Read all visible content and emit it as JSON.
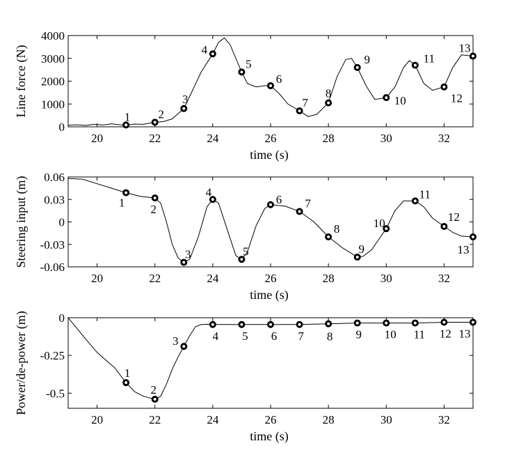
{
  "chart_data": [
    {
      "type": "line",
      "xlabel": "time (s)",
      "ylabel": "Line force (N)",
      "xlim": [
        19,
        33
      ],
      "ylim": [
        0,
        4000
      ],
      "xticks": [
        20,
        22,
        24,
        26,
        28,
        30,
        32
      ],
      "xtick_labels": [
        "20",
        "22",
        "24",
        "26",
        "28",
        "30",
        "32"
      ],
      "yticks": [
        0,
        1000,
        2000,
        3000,
        4000
      ],
      "ytick_labels": [
        "0",
        "1000",
        "2000",
        "3000",
        "4000"
      ],
      "series": [
        {
          "name": "line force",
          "x": [
            19.0,
            19.3,
            19.6,
            19.9,
            20.2,
            20.5,
            20.8,
            21.0,
            21.3,
            21.6,
            22.0,
            22.3,
            22.6,
            23.0,
            23.3,
            23.6,
            24.0,
            24.2,
            24.4,
            24.6,
            24.8,
            25.0,
            25.2,
            25.5,
            25.8,
            26.0,
            26.3,
            26.6,
            27.0,
            27.3,
            27.6,
            28.0,
            28.3,
            28.6,
            28.8,
            29.0,
            29.3,
            29.6,
            30.0,
            30.3,
            30.6,
            30.8,
            31.0,
            31.3,
            31.6,
            32.0,
            32.3,
            32.6,
            33.0
          ],
          "y": [
            70,
            90,
            60,
            110,
            80,
            130,
            90,
            80,
            120,
            110,
            200,
            230,
            350,
            800,
            1600,
            2400,
            3200,
            3700,
            3900,
            3600,
            3000,
            2400,
            1900,
            1750,
            1800,
            1800,
            1450,
            1000,
            700,
            450,
            550,
            1050,
            2200,
            2950,
            3000,
            2600,
            1800,
            1200,
            1280,
            1750,
            2600,
            2900,
            2700,
            1900,
            1600,
            1750,
            2600,
            3150,
            3100
          ]
        }
      ],
      "points": [
        {
          "label": "1",
          "x": 21,
          "y": 80
        },
        {
          "label": "2",
          "x": 22,
          "y": 200
        },
        {
          "label": "3",
          "x": 23,
          "y": 800
        },
        {
          "label": "4",
          "x": 24,
          "y": 3200
        },
        {
          "label": "5",
          "x": 25,
          "y": 2400
        },
        {
          "label": "6",
          "x": 26,
          "y": 1800
        },
        {
          "label": "7",
          "x": 27,
          "y": 700
        },
        {
          "label": "8",
          "x": 28,
          "y": 1050
        },
        {
          "label": "9",
          "x": 29,
          "y": 2600
        },
        {
          "label": "10",
          "x": 30,
          "y": 1280
        },
        {
          "label": "11",
          "x": 31,
          "y": 2700
        },
        {
          "label": "12",
          "x": 32,
          "y": 1750
        },
        {
          "label": "13",
          "x": 33,
          "y": 3100
        }
      ]
    },
    {
      "type": "line",
      "xlabel": "time (s)",
      "ylabel": "Steering input (m)",
      "xlim": [
        19,
        33
      ],
      "ylim": [
        -0.06,
        0.06
      ],
      "xticks": [
        20,
        22,
        24,
        26,
        28,
        30,
        32
      ],
      "xtick_labels": [
        "20",
        "22",
        "24",
        "26",
        "28",
        "30",
        "32"
      ],
      "yticks": [
        0.06,
        0.03,
        0,
        -0.03,
        -0.06
      ],
      "ytick_labels": [
        "0.06",
        "0.03",
        "0",
        "-0.03",
        "-0.06"
      ],
      "series": [
        {
          "name": "steering input",
          "x": [
            19.0,
            19.5,
            20.0,
            20.5,
            21.0,
            21.5,
            22.0,
            22.2,
            22.4,
            22.6,
            22.8,
            23.0,
            23.2,
            23.5,
            23.8,
            24.0,
            24.2,
            24.5,
            24.8,
            25.0,
            25.2,
            25.5,
            25.8,
            26.0,
            26.5,
            27.0,
            27.5,
            28.0,
            28.5,
            29.0,
            29.2,
            29.5,
            29.8,
            30.0,
            30.3,
            30.6,
            31.0,
            31.3,
            31.6,
            32.0,
            32.3,
            32.6,
            33.0
          ],
          "y": [
            0.058,
            0.057,
            0.051,
            0.045,
            0.039,
            0.034,
            0.032,
            0.025,
            0.0,
            -0.03,
            -0.048,
            -0.054,
            -0.05,
            -0.02,
            0.02,
            0.03,
            0.025,
            -0.01,
            -0.045,
            -0.05,
            -0.04,
            -0.005,
            0.018,
            0.023,
            0.021,
            0.014,
            0.0,
            -0.02,
            -0.035,
            -0.047,
            -0.046,
            -0.037,
            -0.02,
            -0.009,
            0.015,
            0.028,
            0.028,
            0.02,
            0.005,
            -0.006,
            -0.014,
            -0.019,
            -0.02
          ]
        }
      ],
      "points": [
        {
          "label": "1",
          "x": 21,
          "y": 0.039
        },
        {
          "label": "2",
          "x": 22,
          "y": 0.032
        },
        {
          "label": "3",
          "x": 23,
          "y": -0.054
        },
        {
          "label": "4",
          "x": 24,
          "y": 0.03
        },
        {
          "label": "5",
          "x": 25,
          "y": -0.05
        },
        {
          "label": "6",
          "x": 26,
          "y": 0.023
        },
        {
          "label": "7",
          "x": 27,
          "y": 0.014
        },
        {
          "label": "8",
          "x": 28,
          "y": -0.02
        },
        {
          "label": "9",
          "x": 29,
          "y": -0.047
        },
        {
          "label": "10",
          "x": 30,
          "y": -0.009
        },
        {
          "label": "11",
          "x": 31,
          "y": 0.028
        },
        {
          "label": "12",
          "x": 32,
          "y": -0.006
        },
        {
          "label": "13",
          "x": 33,
          "y": -0.02
        }
      ]
    },
    {
      "type": "line",
      "xlabel": "time (s)",
      "ylabel": "Power/de-power (m)",
      "xlim": [
        19,
        33
      ],
      "ylim": [
        -0.6,
        0
      ],
      "xticks": [
        20,
        22,
        24,
        26,
        28,
        30,
        32
      ],
      "xtick_labels": [
        "20",
        "22",
        "24",
        "26",
        "28",
        "30",
        "32"
      ],
      "yticks": [
        0,
        -0.25,
        -0.5
      ],
      "ytick_labels": [
        "0",
        "-0.25",
        "-0.5"
      ],
      "series": [
        {
          "name": "power/de-power",
          "x": [
            19.0,
            19.3,
            19.6,
            20.0,
            20.3,
            20.6,
            21.0,
            21.3,
            21.6,
            22.0,
            22.2,
            22.4,
            22.6,
            22.8,
            23.0,
            23.2,
            23.4,
            23.6,
            23.8,
            24.0,
            25.0,
            26.0,
            27.0,
            28.0,
            29.0,
            30.0,
            31.0,
            32.0,
            33.0
          ],
          "y": [
            0.0,
            -0.07,
            -0.14,
            -0.23,
            -0.28,
            -0.33,
            -0.43,
            -0.49,
            -0.52,
            -0.54,
            -0.52,
            -0.44,
            -0.34,
            -0.26,
            -0.19,
            -0.12,
            -0.06,
            -0.045,
            -0.044,
            -0.045,
            -0.045,
            -0.045,
            -0.045,
            -0.04,
            -0.035,
            -0.035,
            -0.035,
            -0.03,
            -0.03
          ]
        }
      ],
      "points": [
        {
          "label": "1",
          "x": 21,
          "y": -0.43
        },
        {
          "label": "2",
          "x": 22,
          "y": -0.54
        },
        {
          "label": "3",
          "x": 23,
          "y": -0.19
        },
        {
          "label": "4",
          "x": 24,
          "y": -0.045
        },
        {
          "label": "5",
          "x": 25,
          "y": -0.045
        },
        {
          "label": "6",
          "x": 26,
          "y": -0.045
        },
        {
          "label": "7",
          "x": 27,
          "y": -0.045
        },
        {
          "label": "8",
          "x": 28,
          "y": -0.04
        },
        {
          "label": "9",
          "x": 29,
          "y": -0.035
        },
        {
          "label": "10",
          "x": 30,
          "y": -0.035
        },
        {
          "label": "11",
          "x": 31,
          "y": -0.035
        },
        {
          "label": "12",
          "x": 32,
          "y": -0.03
        },
        {
          "label": "13",
          "x": 33,
          "y": -0.03
        }
      ]
    }
  ]
}
